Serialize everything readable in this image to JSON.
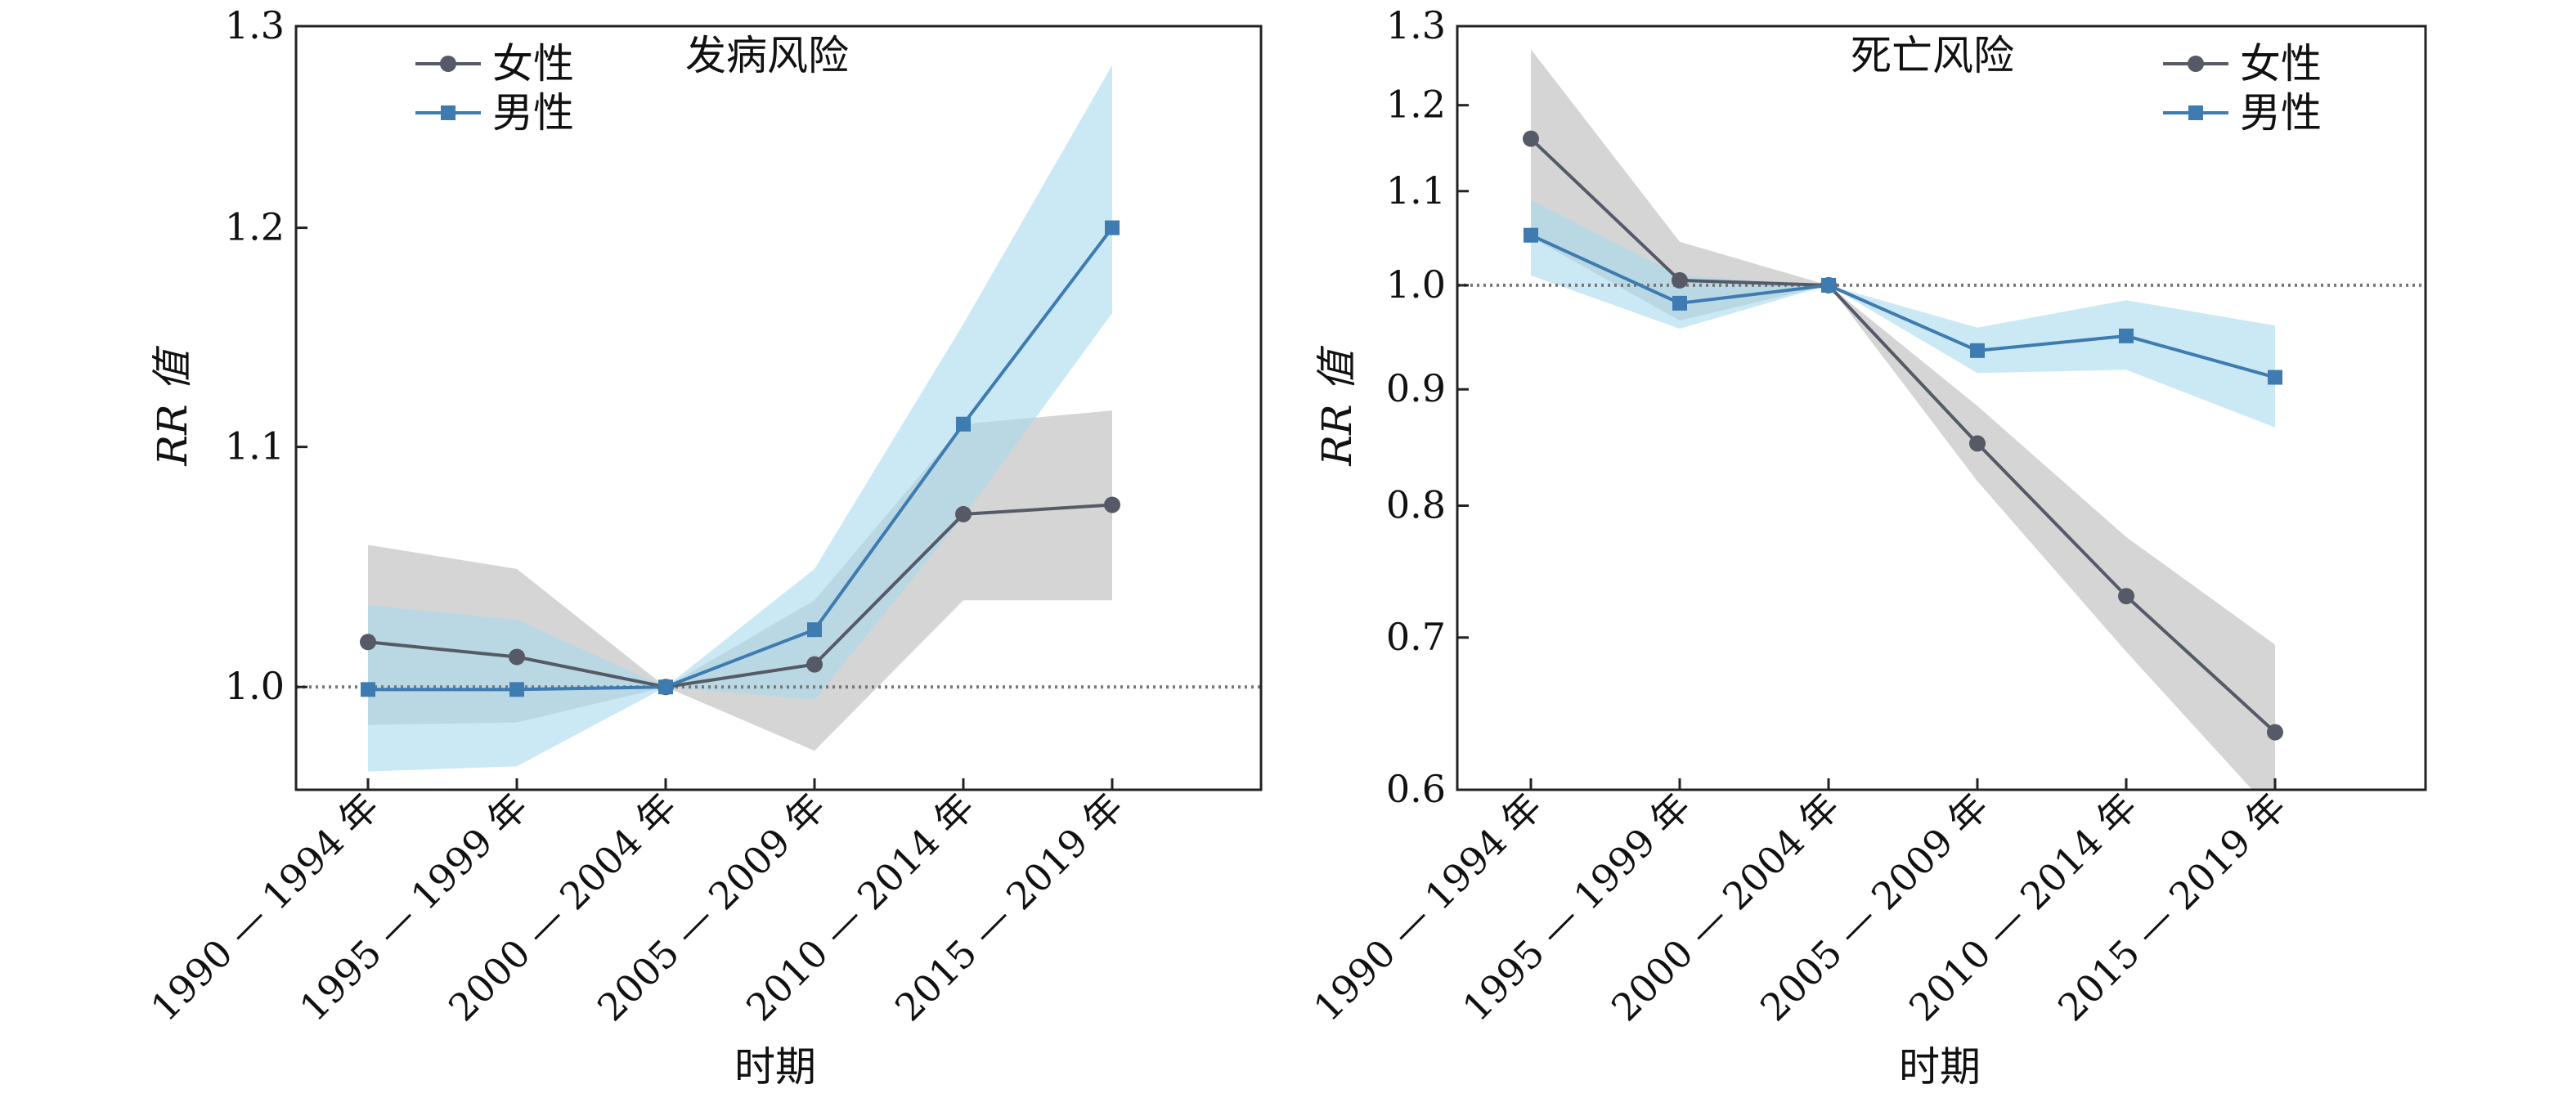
{
  "chart_data": [
    {
      "type": "line",
      "title": "发病风险",
      "xlabel": "时期",
      "ylabel": "RR 值",
      "categories": [
        "1990 — 1994 年",
        "1995 — 1999 年",
        "2000 — 2004 年",
        "2005 — 2009 年",
        "2010 — 2014 年",
        "2015 — 2019 年"
      ],
      "ylim": [
        0.96,
        1.3
      ],
      "yscale": "log",
      "yticks": [
        1.0,
        1.1,
        1.2,
        1.3
      ],
      "ytick_labels": [
        "1.0",
        "1.1",
        "1.2",
        "1.3"
      ],
      "reference_line": 1.0,
      "legend_position": "top-left",
      "series": [
        {
          "name": "女性",
          "color": "#555a66",
          "band_color": "#c7c7c7",
          "marker": "circle",
          "values": [
            1.018,
            1.012,
            1.0,
            1.009,
            1.071,
            1.075
          ],
          "lower": [
            0.985,
            0.986,
            1.0,
            0.975,
            1.035,
            1.035
          ],
          "upper": [
            1.058,
            1.048,
            1.0,
            1.035,
            1.11,
            1.116
          ]
        },
        {
          "name": "男性",
          "color": "#3d7bb0",
          "band_color": "#a8d8ee",
          "marker": "square",
          "values": [
            0.999,
            0.999,
            1.0,
            1.023,
            1.11,
            1.2
          ],
          "lower": [
            0.967,
            0.969,
            1.0,
            0.995,
            1.07,
            1.16
          ],
          "upper": [
            1.033,
            1.027,
            1.0,
            1.048,
            1.155,
            1.28
          ]
        }
      ]
    },
    {
      "type": "line",
      "title": "死亡风险",
      "xlabel": "时期",
      "ylabel": "RR 值",
      "categories": [
        "1990 — 1994 年",
        "1995 — 1999 年",
        "2000 — 2004 年",
        "2005 — 2009 年",
        "2010 — 2014 年",
        "2015 — 2019 年"
      ],
      "ylim": [
        0.6,
        1.3
      ],
      "yscale": "log",
      "yticks": [
        0.6,
        0.7,
        0.8,
        0.9,
        1.0,
        1.1,
        1.2,
        1.3
      ],
      "ytick_labels": [
        "0.6",
        "0.7",
        "0.8",
        "0.9",
        "1.0",
        "1.1",
        "1.2",
        "1.3"
      ],
      "reference_line": 1.0,
      "legend_position": "top-right",
      "series": [
        {
          "name": "女性",
          "color": "#555a66",
          "band_color": "#c7c7c7",
          "marker": "circle",
          "values": [
            1.16,
            1.005,
            1.0,
            0.852,
            0.73,
            0.636
          ],
          "lower": [
            1.05,
            0.965,
            1.0,
            0.82,
            0.69,
            0.585
          ],
          "upper": [
            1.27,
            1.045,
            1.0,
            0.885,
            0.775,
            0.695
          ]
        },
        {
          "name": "男性",
          "color": "#3d7bb0",
          "band_color": "#a8d8ee",
          "marker": "square",
          "values": [
            1.052,
            0.982,
            1.0,
            0.936,
            0.95,
            0.911
          ],
          "lower": [
            1.01,
            0.957,
            1.0,
            0.915,
            0.918,
            0.866
          ],
          "upper": [
            1.09,
            1.01,
            1.0,
            0.958,
            0.985,
            0.96
          ]
        }
      ]
    }
  ]
}
